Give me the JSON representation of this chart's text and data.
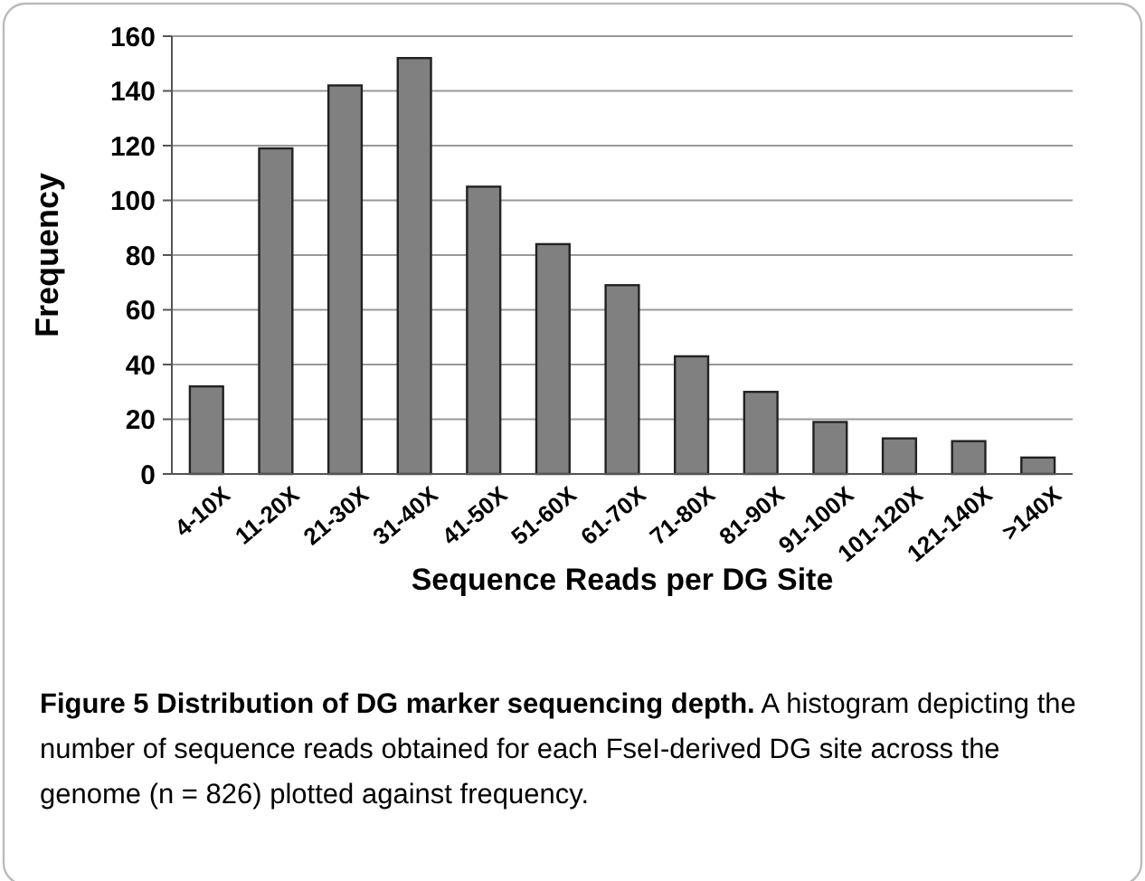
{
  "chart_data": {
    "type": "bar",
    "xlabel": "Sequence Reads per DG Site",
    "ylabel": "Frequency",
    "categories": [
      "4-10X",
      "11-20X",
      "21-30X",
      "31-40X",
      "41-50X",
      "51-60X",
      "61-70X",
      "71-80X",
      "81-90X",
      "91-100X",
      "101-120X",
      "121-140X",
      ">140X"
    ],
    "values": [
      32,
      119,
      142,
      152,
      105,
      84,
      69,
      43,
      30,
      19,
      13,
      12,
      6
    ],
    "color": "#808080",
    "ylim": [
      0,
      160
    ],
    "yticks": [
      0,
      20,
      40,
      60,
      80,
      100,
      120,
      140,
      160
    ],
    "grid": "y",
    "annotations": [
      "Figure 5 Distribution of DG marker sequencing depth.",
      "A histogram depicting the number of sequence reads obtained for each FseI-derived DG site across the genome (n = 826) plotted against frequency."
    ]
  }
}
